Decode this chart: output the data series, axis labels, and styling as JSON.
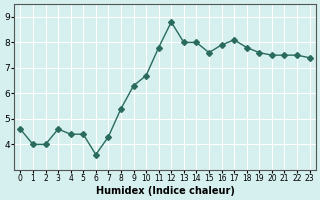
{
  "x": [
    0,
    1,
    2,
    3,
    4,
    5,
    6,
    7,
    8,
    9,
    10,
    11,
    12,
    13,
    14,
    15,
    16,
    17,
    18,
    19,
    20,
    21,
    22,
    23
  ],
  "y": [
    4.6,
    4.0,
    4.0,
    4.6,
    4.4,
    4.4,
    3.6,
    4.3,
    5.4,
    6.3,
    6.7,
    7.8,
    8.8,
    8.0,
    8.0,
    7.6,
    7.9,
    8.1,
    7.8,
    7.6,
    7.5,
    7.5,
    7.5,
    7.4
  ],
  "xlabel": "Humidex (Indice chaleur)",
  "ylabel": "",
  "title": "",
  "line_color": "#2a6b5e",
  "marker": "D",
  "marker_size": 3,
  "bg_color": "#d5f0ee",
  "grid_color": "#ffffff",
  "ylim": [
    3.0,
    9.5
  ],
  "xlim": [
    -0.5,
    23.5
  ],
  "yticks": [
    4,
    5,
    6,
    7,
    8,
    9
  ],
  "xtick_labels": [
    "0",
    "1",
    "2",
    "3",
    "4",
    "5",
    "6",
    "7",
    "8",
    "9",
    "10",
    "11",
    "12",
    "13",
    "14",
    "15",
    "16",
    "17",
    "18",
    "19",
    "20",
    "21",
    "22",
    "23"
  ]
}
